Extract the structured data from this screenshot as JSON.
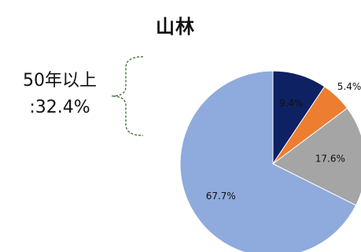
{
  "annotation": {
    "line1": "50年以上",
    "line2": ":32.4%",
    "brace_color": "#3d6b2a"
  },
  "chart_data": {
    "type": "pie",
    "title": "山林",
    "start_angle_deg": 0,
    "direction": "clockwise",
    "slices": [
      {
        "value": 9.4,
        "label": "9.4%",
        "color": "#0e2163"
      },
      {
        "value": 5.4,
        "label": "5.4%",
        "color": "#ed7d31"
      },
      {
        "value": 17.6,
        "label": "17.6%",
        "color": "#a5a5a5"
      },
      {
        "value": 67.7,
        "label": "67.7%",
        "color": "#8faadc"
      }
    ]
  }
}
